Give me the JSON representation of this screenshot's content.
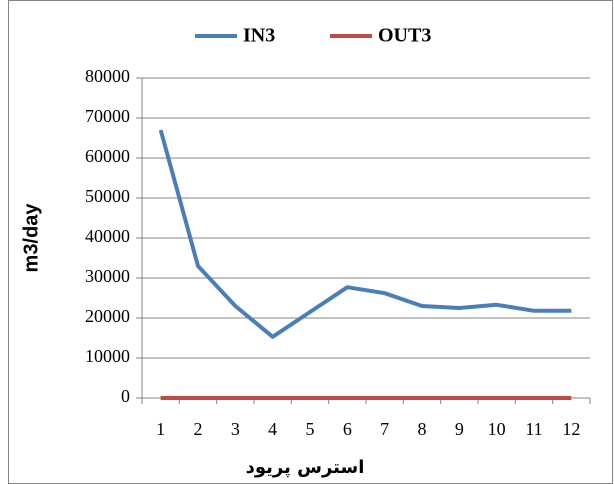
{
  "chart_data": {
    "type": "line",
    "x_label": "استرس پریود",
    "y_label": "m3/day",
    "categories": [
      "1",
      "2",
      "3",
      "4",
      "5",
      "6",
      "7",
      "8",
      "9",
      "10",
      "11",
      "12"
    ],
    "series": [
      {
        "name": "IN3",
        "color": "#4a7ebb",
        "values": [
          67000,
          33000,
          23000,
          15300,
          21500,
          27700,
          26200,
          23000,
          22500,
          23300,
          21800,
          21800
        ]
      },
      {
        "name": "OUT3",
        "color": "#be4b48",
        "values": [
          0,
          0,
          0,
          0,
          0,
          0,
          0,
          0,
          0,
          0,
          0,
          0
        ]
      }
    ],
    "ylim": [
      0,
      80000
    ],
    "yticks": [
      0,
      10000,
      20000,
      30000,
      40000,
      50000,
      60000,
      70000,
      80000
    ],
    "grid": true,
    "legend": "top"
  }
}
